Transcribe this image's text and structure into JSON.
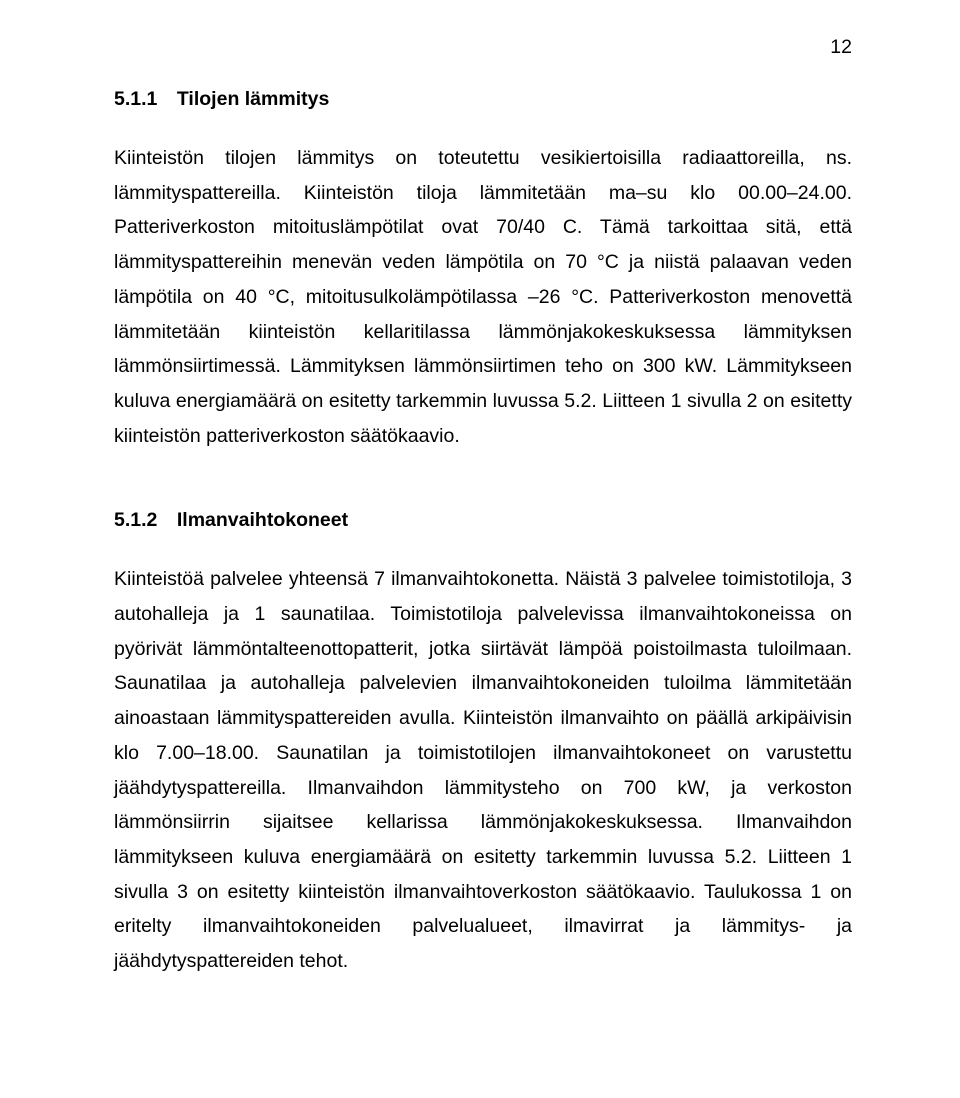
{
  "page_number": "12",
  "section1": {
    "heading": "5.1.1 Tilojen lämmitys",
    "body": "Kiinteistön tilojen lämmitys on toteutettu vesikiertoisilla radiaattoreilla, ns. lämmityspattereilla. Kiinteistön tiloja lämmitetään ma–su klo 00.00–24.00. Patteriverkoston mitoituslämpötilat ovat 70/40 C. Tämä tarkoittaa sitä, että lämmityspattereihin menevän veden lämpötila on 70 °C ja niistä palaavan veden lämpötila on 40 °C, mitoitusulkolämpötilassa –26 °C. Patteriverkoston menovettä lämmitetään kiinteistön kellaritilassa lämmönjakokeskuksessa lämmityksen lämmönsiirtimessä. Lämmityksen lämmönsiirtimen teho on 300 kW. Lämmitykseen kuluva energiamäärä on esitetty tarkemmin luvussa 5.2. Liitteen 1 sivulla 2 on esitetty kiinteistön patteriverkoston säätökaavio."
  },
  "section2": {
    "heading": "5.1.2 Ilmanvaihtokoneet",
    "body": "Kiinteistöä palvelee yhteensä 7 ilmanvaihtokonetta. Näistä 3 palvelee toimistotiloja, 3 autohalleja ja 1 saunatilaa. Toimistotiloja palvelevissa ilmanvaihtokoneissa on pyörivät lämmöntalteenottopatterit, jotka siirtävät lämpöä poistoilmasta tuloilmaan. Saunatilaa ja autohalleja palvelevien ilmanvaihtokoneiden tuloilma lämmitetään ainoastaan lämmityspattereiden avulla. Kiinteistön ilmanvaihto on päällä arkipäivisin klo 7.00–18.00. Saunatilan ja toimistotilojen ilmanvaihtokoneet on varustettu jäähdytyspattereilla. Ilmanvaihdon lämmitysteho on 700 kW, ja verkoston lämmönsiirrin sijaitsee kellarissa lämmönjakokeskuksessa. Ilmanvaihdon lämmitykseen kuluva energiamäärä on esitetty tarkemmin luvussa 5.2. Liitteen 1 sivulla 3 on esitetty kiinteistön ilmanvaihtoverkoston säätökaavio. Taulukossa 1 on eritelty ilmanvaihtokoneiden palvelualueet, ilmavirrat ja lämmitys- ja jäähdytyspattereiden tehot."
  }
}
